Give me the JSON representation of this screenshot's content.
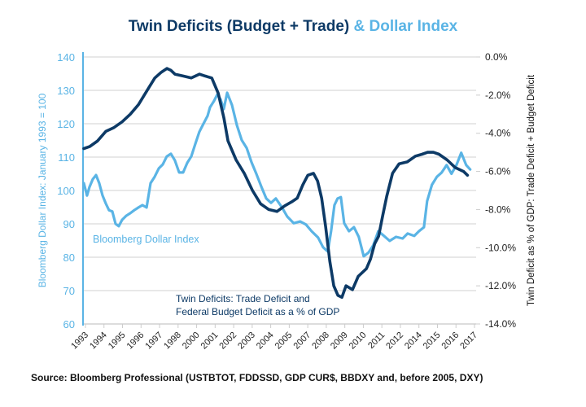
{
  "title": {
    "part1": "Twin Deficits (Budget + Trade)",
    "part2": "& Dollar Index"
  },
  "source": "Source: Bloomberg Professional (USTBTOT, FDDSSD, GDP CUR$, BBDXY and, before 2005, DXY)",
  "colors": {
    "dark": "#0d3a66",
    "light": "#5ab4e5",
    "grid": "#d9d9d9"
  },
  "chart_data": {
    "type": "line",
    "title": "Twin Deficits (Budget + Trade) & Dollar Index",
    "xlabel": "",
    "ylabel_left": "Bloomberg Dollar Index: January 1993 = 100",
    "ylabel_right": "Twin Deficit as % of GDP: Trade Deficit + Budget Deficit",
    "ylim_left": [
      60,
      140
    ],
    "ylim_right": [
      -14.0,
      0.0
    ],
    "xlim": [
      1993.0,
      2017.5
    ],
    "grid": true,
    "left_ticks": [
      "140",
      "130",
      "120",
      "110",
      "100",
      "90",
      "80",
      "70",
      "60"
    ],
    "right_ticks": [
      "0.0%",
      "-2.0%",
      "-4.0%",
      "-6.0%",
      "-8.0%",
      "-10.0%",
      "-12.0%",
      "-14.0%"
    ],
    "x_tick_labels": [
      "1993",
      "1994",
      "1995",
      "1996",
      "1997",
      "1998",
      "2000",
      "2001",
      "2002",
      "2003",
      "2004",
      "2005",
      "2007",
      "2008",
      "2009",
      "2010",
      "2011",
      "2012",
      "2014",
      "2015",
      "2016",
      "2017"
    ],
    "annotations": {
      "light": "Bloomberg Dollar Index",
      "dark_line1": "Twin Deficits: Trade Deficit and",
      "dark_line2": "Federal Budget Deficit as a % of GDP"
    },
    "series": [
      {
        "name": "Bloomberg Dollar Index",
        "axis": "left",
        "color": "#5ab4e5",
        "x": [
          1993.0,
          1993.2,
          1993.35,
          1993.56,
          1993.76,
          1993.96,
          1994.17,
          1994.37,
          1994.57,
          1994.78,
          1994.98,
          1995.18,
          1995.39,
          1995.64,
          1995.9,
          1996.15,
          1996.41,
          1996.66,
          1996.92,
          1997.17,
          1997.42,
          1997.68,
          1997.93,
          1998.18,
          1998.44,
          1998.69,
          1998.95,
          1999.2,
          1999.46,
          1999.71,
          1999.96,
          2000.22,
          2000.47,
          2000.73,
          2000.88,
          2001.13,
          2001.34,
          2001.54,
          2001.74,
          2001.95,
          2002.25,
          2002.56,
          2002.86,
          2003.17,
          2003.47,
          2003.78,
          2004.08,
          2004.39,
          2004.69,
          2004.99,
          2005.35,
          2005.7,
          2006.11,
          2006.51,
          2006.87,
          2007.22,
          2007.63,
          2007.94,
          2008.24,
          2008.44,
          2008.65,
          2008.85,
          2009.05,
          2009.26,
          2009.56,
          2009.87,
          2010.17,
          2010.48,
          2010.78,
          2011.08,
          2011.39,
          2011.69,
          2012.1,
          2012.5,
          2012.91,
          2013.22,
          2013.63,
          2013.93,
          2014.24,
          2014.44,
          2014.74,
          2015.05,
          2015.35,
          2015.66,
          2015.96,
          2016.27,
          2016.57,
          2016.88,
          2017.13
        ],
        "values": [
          102.2,
          98.5,
          101.0,
          103.4,
          104.6,
          102.2,
          98.5,
          96.1,
          94.1,
          93.7,
          90.0,
          89.3,
          91.2,
          92.4,
          93.2,
          94.1,
          94.9,
          95.6,
          94.9,
          102.2,
          104.1,
          106.6,
          107.8,
          110.2,
          111.0,
          109.0,
          105.4,
          105.4,
          108.3,
          110.2,
          113.9,
          117.6,
          120.0,
          122.4,
          124.9,
          126.8,
          128.8,
          127.3,
          124.4,
          129.3,
          125.6,
          119.5,
          115.1,
          112.7,
          108.5,
          104.9,
          101.2,
          97.6,
          96.3,
          97.6,
          95.1,
          92.2,
          90.2,
          90.7,
          89.8,
          87.8,
          85.9,
          83.0,
          81.7,
          87.8,
          95.6,
          97.6,
          98.0,
          90.2,
          87.8,
          89.0,
          86.1,
          80.3,
          81.4,
          83.6,
          87.8,
          86.6,
          84.9,
          86.1,
          85.6,
          87.1,
          86.4,
          87.8,
          89.0,
          96.8,
          101.7,
          104.1,
          105.4,
          107.6,
          105.0,
          107.6,
          111.3,
          107.6,
          106.3
        ]
      },
      {
        "name": "Twin Deficits: Trade Deficit and Federal Budget Deficit as a % of GDP",
        "axis": "right",
        "color": "#0d3a66",
        "x": [
          1993.0,
          1993.36,
          1993.86,
          1994.37,
          1994.88,
          1995.39,
          1995.9,
          1996.41,
          1996.92,
          1997.43,
          1997.84,
          1998.19,
          1998.44,
          1998.69,
          1999.2,
          1999.71,
          2000.22,
          2000.58,
          2000.99,
          2001.39,
          2001.75,
          2002.0,
          2002.51,
          2003.02,
          2003.53,
          2004.04,
          2004.55,
          2005.06,
          2005.56,
          2005.97,
          2006.33,
          2006.68,
          2006.99,
          2007.34,
          2007.6,
          2007.85,
          2008.1,
          2008.36,
          2008.61,
          2008.87,
          2009.12,
          2009.37,
          2009.78,
          2010.14,
          2010.65,
          2010.9,
          2011.16,
          2011.41,
          2011.67,
          2011.92,
          2012.28,
          2012.69,
          2013.2,
          2013.71,
          2014.12,
          2014.47,
          2014.83,
          2015.18,
          2015.69,
          2016.2,
          2016.71,
          2016.96
        ],
        "values": [
          -4.8,
          -4.7,
          -4.4,
          -3.9,
          -3.7,
          -3.4,
          -3.0,
          -2.5,
          -1.8,
          -1.1,
          -0.8,
          -0.6,
          -0.7,
          -0.9,
          -1.0,
          -1.1,
          -0.9,
          -1.0,
          -1.1,
          -1.9,
          -3.2,
          -4.4,
          -5.4,
          -6.1,
          -7.0,
          -7.7,
          -8.0,
          -8.1,
          -7.8,
          -7.6,
          -7.4,
          -6.7,
          -6.2,
          -6.1,
          -6.5,
          -7.4,
          -8.9,
          -10.7,
          -12.0,
          -12.5,
          -12.6,
          -12.0,
          -12.2,
          -11.5,
          -11.1,
          -10.6,
          -9.8,
          -9.4,
          -8.3,
          -7.3,
          -6.1,
          -5.6,
          -5.5,
          -5.2,
          -5.1,
          -5.0,
          -5.0,
          -5.1,
          -5.4,
          -5.8,
          -6.0,
          -6.2
        ]
      }
    ]
  }
}
